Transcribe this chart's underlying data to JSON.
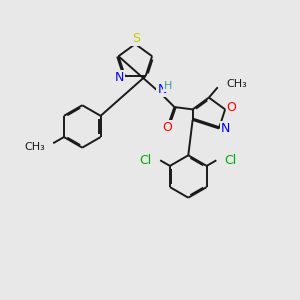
{
  "bg_color": "#e8e8e8",
  "bond_color": "#1a1a1a",
  "S_color": "#cccc00",
  "N_color": "#0000ff",
  "O_color": "#ff0000",
  "Cl_color": "#00aa00",
  "H_color": "#4a9999",
  "font_size": 8.5,
  "lw": 1.4,
  "xlim": [
    0,
    10
  ],
  "ylim": [
    0,
    10
  ]
}
